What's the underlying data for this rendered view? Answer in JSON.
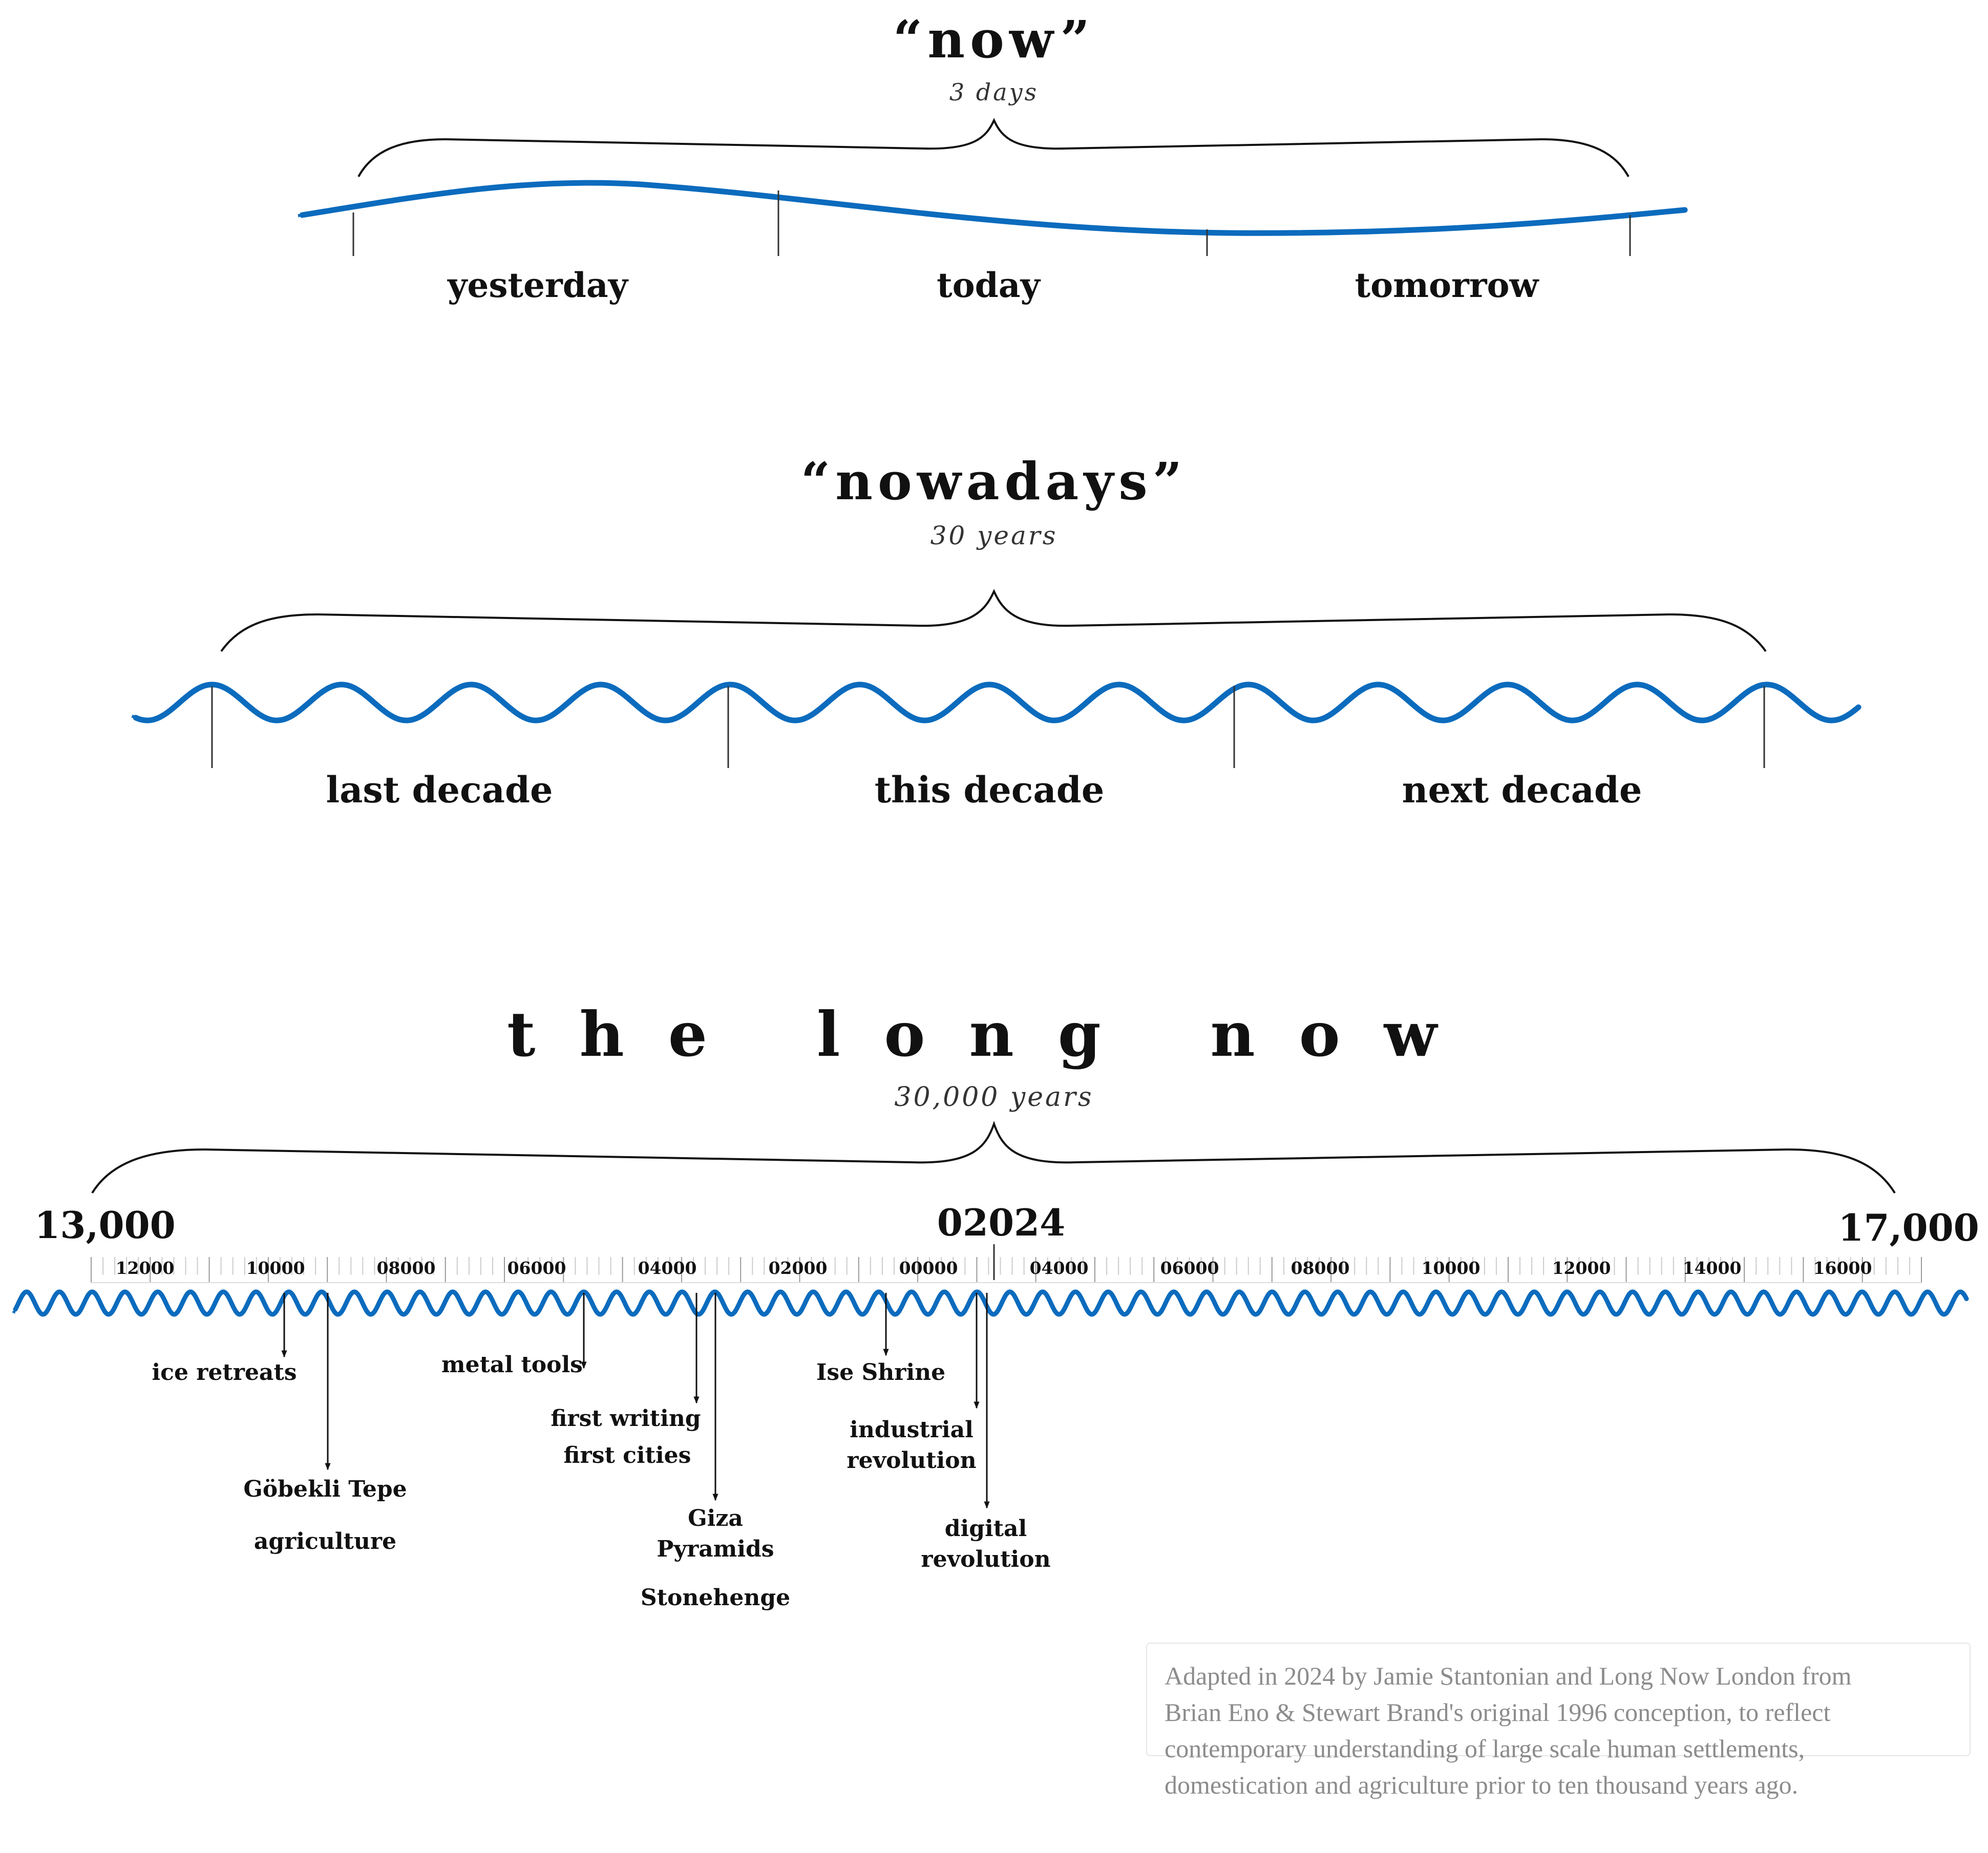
{
  "now": {
    "title": "“now”",
    "span": "3 days",
    "labels": [
      "yesterday",
      "today",
      "tomorrow"
    ]
  },
  "nowadays": {
    "title": "“nowadays”",
    "span": "30 years",
    "labels": [
      "last decade",
      "this decade",
      "next decade"
    ]
  },
  "longnow": {
    "title": "the long now",
    "span": "30,000 years",
    "start_label": "13,000",
    "center_label": "02024",
    "end_label": "17,000",
    "axis": {
      "ticks": [
        "12000",
        "10000",
        "08000",
        "06000",
        "04000",
        "02000",
        "00000",
        "04000",
        "06000",
        "08000",
        "10000",
        "12000",
        "14000",
        "16000"
      ]
    },
    "events": [
      {
        "name": "ice-retreats",
        "lines": [
          "ice retreats"
        ]
      },
      {
        "name": "gobekli-tepe",
        "lines": [
          "Göbekli Tepe"
        ]
      },
      {
        "name": "agriculture",
        "lines": [
          "agriculture"
        ]
      },
      {
        "name": "metal-tools",
        "lines": [
          "metal tools"
        ]
      },
      {
        "name": "first-writing",
        "lines": [
          "first writing"
        ]
      },
      {
        "name": "first-cities",
        "lines": [
          "first cities"
        ]
      },
      {
        "name": "giza-pyramids",
        "lines": [
          "Giza",
          "Pyramids"
        ]
      },
      {
        "name": "stonehenge",
        "lines": [
          "Stonehenge"
        ]
      },
      {
        "name": "ise-shrine",
        "lines": [
          "Ise Shrine"
        ]
      },
      {
        "name": "industrial-revolution",
        "lines": [
          "industrial",
          "revolution"
        ]
      },
      {
        "name": "digital-revolution",
        "lines": [
          "digital",
          "revolution"
        ]
      }
    ]
  },
  "credit": {
    "lines": [
      "Adapted in 2024 by Jamie Stantonian and Long Now London from",
      "Brian Eno & Stewart Brand's original 1996 conception, to reflect",
      "contemporary understanding of large scale human settlements,",
      "domestication and agriculture prior to ten thousand years ago."
    ]
  },
  "colors": {
    "wave": "#0b6bbd",
    "ink": "#111111",
    "credit_text": "#8c8c8c",
    "credit_border": "#e6e6e6"
  }
}
